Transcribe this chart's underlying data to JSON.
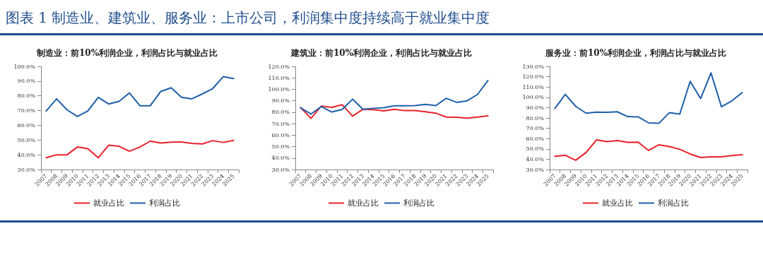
{
  "chart_data": [
    {
      "type": "line",
      "title": "图表 1 制造业、建筑业、服务业：上市公司，利润集中度持续高于就业集中度",
      "subtitle": "制造业：前10%利润企业，利润占比与就业占比",
      "categories": [
        "2007",
        "2008",
        "2009",
        "2010",
        "2011",
        "2012",
        "2013",
        "2014",
        "2015",
        "2016",
        "2017",
        "2018",
        "2019",
        "2020",
        "2021",
        "2022",
        "2023",
        "2024",
        "2025"
      ],
      "series": [
        {
          "name": "就业占比",
          "color": "#e8212b",
          "values": [
            38,
            40,
            40,
            45.3,
            44.1,
            38,
            46.5,
            45.8,
            42.4,
            45.3,
            49.3,
            48,
            48.6,
            48.7,
            47.7,
            47.4,
            49.6,
            48.4,
            49.8
          ]
        },
        {
          "name": "利润占比",
          "color": "#1f5fa8",
          "values": [
            69.7,
            78,
            70.5,
            66,
            69.7,
            79,
            74.5,
            76.3,
            82,
            73.3,
            73.3,
            83,
            85.5,
            79,
            78,
            81.3,
            85,
            93,
            91.7
          ]
        }
      ],
      "ylim": [
        30,
        100
      ],
      "yticks": [
        {
          "value": 30,
          "label": "30.0%"
        },
        {
          "value": 40,
          "label": "40.0%"
        },
        {
          "value": 50,
          "label": "50.0%"
        },
        {
          "value": 60,
          "label": "60.0%"
        },
        {
          "value": 70,
          "label": "70.0%"
        },
        {
          "value": 80,
          "label": "80.0%"
        },
        {
          "value": 90,
          "label": "90.0%"
        },
        {
          "value": 100,
          "label": "100.0%"
        }
      ],
      "grid": false,
      "legend": "bottom",
      "marker": "none",
      "line_style": "solid"
    },
    {
      "type": "line",
      "subtitle": "建筑业：前10%利润企业，利润占比与就业占比",
      "categories": [
        "2007",
        "2008",
        "2009",
        "2010",
        "2011",
        "2012",
        "2013",
        "2014",
        "2015",
        "2016",
        "2017",
        "2018",
        "2019",
        "2020",
        "2021",
        "2022",
        "2023",
        "2024",
        "2025"
      ],
      "series": [
        {
          "name": "就业占比",
          "color": "#e8212b",
          "values": [
            84.2,
            74.6,
            85.4,
            84.2,
            86.6,
            76.6,
            82.6,
            82.2,
            81.2,
            82.6,
            81.4,
            81.4,
            80.4,
            79.2,
            75.8,
            75.6,
            74.8,
            75.8,
            76.8
          ]
        },
        {
          "name": "利润占比",
          "color": "#1f5fa8",
          "values": [
            83.8,
            78.4,
            85,
            80.2,
            82.4,
            91.4,
            82.6,
            83.4,
            84,
            85.6,
            85.6,
            85.8,
            86.8,
            85.8,
            92.2,
            88.6,
            90,
            95.5,
            107.7
          ]
        }
      ],
      "ylim": [
        30,
        120
      ],
      "yticks": [
        {
          "value": 30,
          "label": "30.0%"
        },
        {
          "value": 40,
          "label": "40.0%"
        },
        {
          "value": 50,
          "label": "50.0%"
        },
        {
          "value": 60,
          "label": "60.0%"
        },
        {
          "value": 70,
          "label": "70.0%"
        },
        {
          "value": 80,
          "label": "80.0%"
        },
        {
          "value": 90,
          "label": "90.0%"
        },
        {
          "value": 100,
          "label": "100.0%"
        },
        {
          "value": 110,
          "label": "110.0%"
        },
        {
          "value": 120,
          "label": "120.0%"
        }
      ],
      "grid": false,
      "legend": "bottom",
      "marker": "none",
      "line_style": "solid"
    },
    {
      "type": "line",
      "subtitle": "服务业：前10%利润企业，利润占比与就业占比",
      "categories": [
        "2007",
        "2008",
        "2009",
        "2010",
        "2011",
        "2012",
        "2013",
        "2014",
        "2015",
        "2016",
        "2017",
        "2018",
        "2019",
        "2020",
        "2021",
        "2022",
        "2023",
        "2024",
        "2025"
      ],
      "series": [
        {
          "name": "就业占比",
          "color": "#e8212b",
          "values": [
            42.8,
            43.8,
            39,
            46.5,
            58.7,
            57.1,
            58.1,
            56.3,
            56.5,
            48.5,
            54,
            52.2,
            49.6,
            45.1,
            41.6,
            42.4,
            42.4,
            43.6,
            44.3
          ]
        },
        {
          "name": "利润占比",
          "color": "#1f5fa8",
          "values": [
            89.1,
            102.9,
            91.3,
            84.6,
            85.6,
            85.4,
            86,
            81.3,
            81.1,
            75.2,
            74.8,
            85.2,
            83.8,
            115.5,
            98.8,
            123.7,
            90.9,
            96.6,
            104.7
          ]
        }
      ],
      "ylim": [
        30,
        130
      ],
      "yticks": [
        {
          "value": 30,
          "label": "30.0%"
        },
        {
          "value": 40,
          "label": "40.0%"
        },
        {
          "value": 50,
          "label": "50.0%"
        },
        {
          "value": 60,
          "label": "60.0%"
        },
        {
          "value": 70,
          "label": "70.0%"
        },
        {
          "value": 80,
          "label": "80.0%"
        },
        {
          "value": 90,
          "label": "90.0%"
        },
        {
          "value": 100,
          "label": "100.0%"
        },
        {
          "value": 110,
          "label": "110.0%"
        },
        {
          "value": 120,
          "label": "120.0%"
        },
        {
          "value": 130,
          "label": "130.0%"
        }
      ],
      "grid": false,
      "legend": "bottom",
      "marker": "none",
      "line_style": "solid"
    }
  ]
}
